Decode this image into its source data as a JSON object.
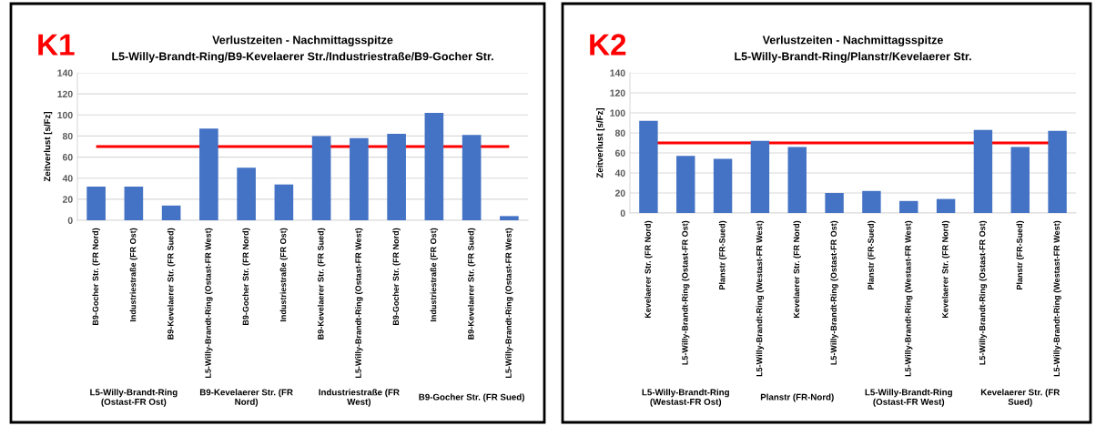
{
  "chart_data": [
    {
      "type": "bar",
      "title": "Verlustzeiten - Nachmittagsspitze",
      "subtitle": "L5-Willy-Brandt-Ring/B9-Kevelaerer Str./Industriestraße/B9-Gocher Str.",
      "ylabel": "Zeitverlust [s/Fz]",
      "categories": [
        "B9-Gocher Str. (FR Nord)",
        "Industriestraße (FR Ost)",
        "B9-Kevelaerer Str. (FR Sued)",
        "L5-Willy-Brandt-Ring (Ostast-FR West)",
        "B9-Gocher Str. (FR Nord)",
        "Industriestraße (FR Ost)",
        "B9-Kevelaerer Str. (FR Sued)",
        "L5-Willy-Brandt-Ring (Ostast-FR West)",
        "B9-Gocher Str. (FR Nord)",
        "Industriestraße (FR Ost)",
        "B9-Kevelaerer Str. (FR Sued)",
        "L5-Willy-Brandt-Ring (Ostast-FR West)"
      ],
      "values": [
        32,
        32,
        14,
        87,
        50,
        34,
        80,
        78,
        82,
        102,
        81,
        4
      ],
      "color": "#4472c4",
      "ylim": [
        0,
        140
      ],
      "yticks": [
        0,
        20,
        40,
        60,
        80,
        100,
        120,
        140
      ],
      "grid": "y",
      "ref_lines": [
        {
          "axis": "y",
          "value": 70,
          "color": "#ff0000"
        }
      ],
      "annotations": [
        "K1",
        "L5-Willy-Brandt-Ring (Ostast-FR Ost)",
        "B9-Kevelaerer Str. (FR Nord)",
        "Industriestraße (FR West)",
        "B9-Gocher Str. (FR Sued)"
      ]
    },
    {
      "type": "bar",
      "title": "Verlustzeiten - Nachmittagsspitze",
      "subtitle": "L5-Willy-Brandt-Ring/Planstr/Kevelaerer Str.",
      "ylabel": "Zeitverlust [s/Fz]",
      "categories": [
        "Kevelaerer Str. (FR Nord)",
        "L5-Willy-Brandt-Ring (Ostast-FR Ost)",
        "Planstr (FR-Sued)",
        "L5-Willy-Brandt-Ring (Westast-FR West)",
        "Kevelaerer Str. (FR Nord)",
        "L5-Willy-Brandt-Ring (Ostast-FR Ost)",
        "Planstr (FR-Sued)",
        "L5-Willy-Brandt-Ring (Westast-FR West)",
        "Kevelaerer Str. (FR Nord)",
        "L5-Willy-Brandt-Ring (Ostast-FR Ost)",
        "Planstr (FR-Sued)",
        "L5-Willy-Brandt-Ring (Westast-FR West)"
      ],
      "values": [
        92,
        57,
        54,
        72,
        66,
        20,
        22,
        12,
        14,
        83,
        66,
        82
      ],
      "color": "#4472c4",
      "ylim": [
        0,
        140
      ],
      "yticks": [
        0,
        20,
        40,
        60,
        80,
        100,
        120,
        140
      ],
      "grid": "y",
      "ref_lines": [
        {
          "axis": "y",
          "value": 70,
          "color": "#ff0000"
        }
      ],
      "annotations": [
        "K2",
        "L5-Willy-Brandt-Ring (Westast-FR Ost)",
        "Planstr (FR-Nord)",
        "L5-Willy-Brandt-Ring (Ostast-FR West)",
        "Kevelaerer Str. (FR Sued)"
      ]
    }
  ]
}
